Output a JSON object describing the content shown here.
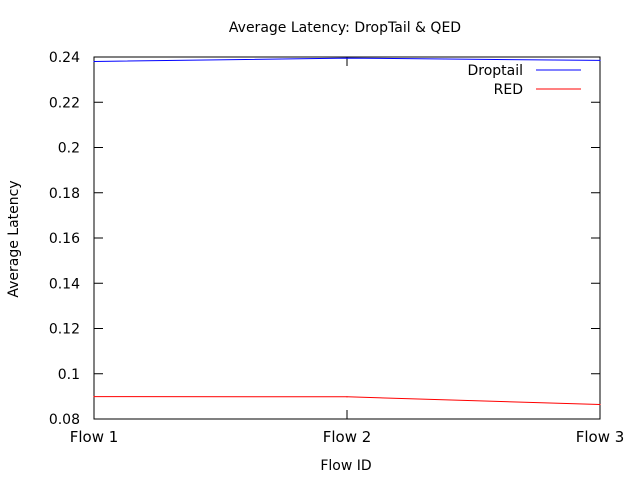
{
  "chart_data": {
    "type": "line",
    "title": "Average Latency: DropTail & QED",
    "xlabel": "Flow ID",
    "ylabel": "Average Latency",
    "categories": [
      "Flow 1",
      "Flow 2",
      "Flow 3"
    ],
    "ylim": [
      0.08,
      0.24
    ],
    "yticks": [
      0.08,
      0.1,
      0.12,
      0.14,
      0.16,
      0.18,
      0.2,
      0.22,
      0.24
    ],
    "ytick_labels": [
      "0.08",
      "0.1",
      "0.12",
      "0.14",
      "0.16",
      "0.18",
      "0.2",
      "0.22",
      "0.24"
    ],
    "grid": false,
    "legend_position": "top-right",
    "series": [
      {
        "name": "Droptail",
        "color": "#0000ff",
        "values": [
          0.238,
          0.2395,
          0.2385
        ]
      },
      {
        "name": "RED",
        "color": "#ff0000",
        "values": [
          0.0899,
          0.0898,
          0.0864
        ]
      }
    ]
  }
}
